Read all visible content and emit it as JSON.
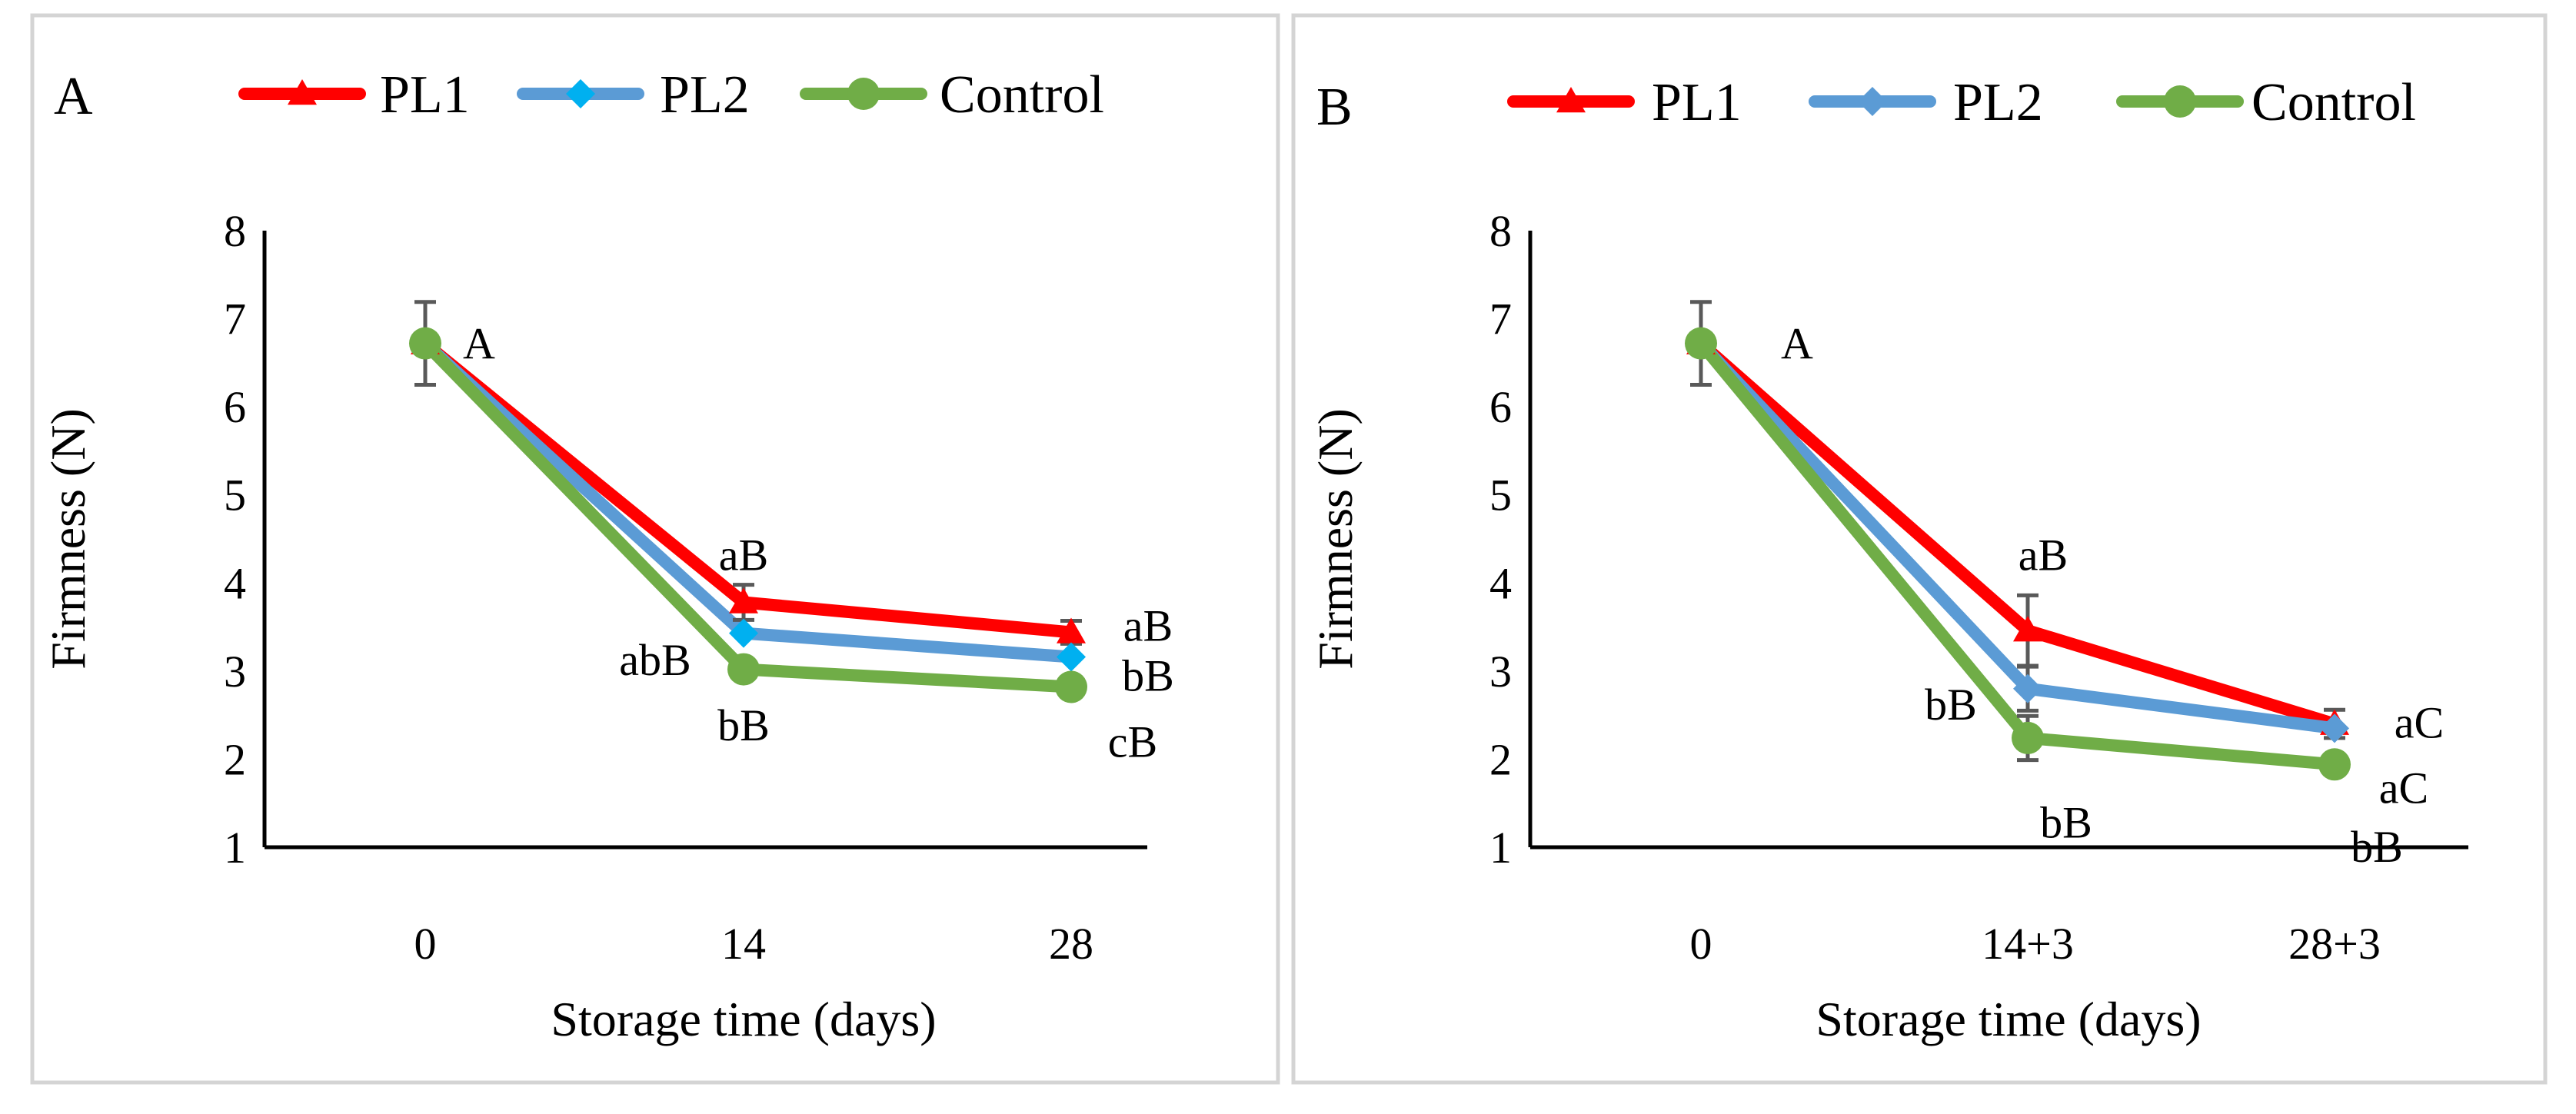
{
  "colors": {
    "PL1": "#ff0000",
    "PL2": "#5b9bd5",
    "PL2_marker_A": "#00b0f0",
    "Control": "#70ad47",
    "errorbar": "#595959",
    "frame": "#d4d4d4"
  },
  "chart_data": [
    {
      "type": "line",
      "panel_label": "A",
      "title": "",
      "xlabel": "Storage time (days)",
      "ylabel": "Firmness (N)",
      "categories": [
        "0",
        "14",
        "28"
      ],
      "ylim": [
        1,
        8
      ],
      "yticks": [
        "1",
        "2",
        "3",
        "4",
        "5",
        "6",
        "7",
        "8"
      ],
      "grid": false,
      "legend_position": "top",
      "series": [
        {
          "name": "PL1",
          "marker": "triangle",
          "values": [
            6.72,
            3.78,
            3.44
          ],
          "errors": [
            0.47,
            0.2,
            0.13
          ]
        },
        {
          "name": "PL2",
          "marker": "diamond",
          "values": [
            6.72,
            3.43,
            3.16
          ],
          "errors": [
            0,
            0,
            0
          ]
        },
        {
          "name": "Control",
          "marker": "circle",
          "values": [
            6.72,
            3.02,
            2.82
          ],
          "errors": [
            0,
            0,
            0
          ]
        }
      ],
      "annotations": [
        {
          "text": "A",
          "category": "0",
          "y": 6.72,
          "placement": "right"
        },
        {
          "text": "aB",
          "category": "14",
          "y": 4.32,
          "placement": "above"
        },
        {
          "text": "abB",
          "category": "14",
          "y": 3.35,
          "placement": "left"
        },
        {
          "text": "bB",
          "category": "14",
          "y": 2.52,
          "placement": "below"
        },
        {
          "text": "aB",
          "category": "28",
          "y": 3.52,
          "placement": "right"
        },
        {
          "text": "bB",
          "category": "28",
          "y": 2.95,
          "placement": "right"
        },
        {
          "text": "cB",
          "category": "28",
          "y": 2.2,
          "placement": "right"
        }
      ]
    },
    {
      "type": "line",
      "panel_label": "B",
      "title": "",
      "xlabel": "Storage time (days)",
      "ylabel": "Firmness (N)",
      "categories": [
        "0",
        "14+3",
        "28+3"
      ],
      "ylim": [
        1,
        8
      ],
      "yticks": [
        "1",
        "2",
        "3",
        "4",
        "5",
        "6",
        "7",
        "8"
      ],
      "grid": false,
      "legend_position": "top",
      "series": [
        {
          "name": "PL1",
          "marker": "triangle",
          "values": [
            6.72,
            3.46,
            2.4
          ],
          "errors": [
            0.47,
            0.4,
            0.16
          ]
        },
        {
          "name": "PL2",
          "marker": "diamond",
          "values": [
            6.72,
            2.8,
            2.35
          ],
          "errors": [
            0,
            0.25,
            0
          ]
        },
        {
          "name": "Control",
          "marker": "circle",
          "values": [
            6.72,
            2.24,
            1.94
          ],
          "errors": [
            0,
            0.25,
            0
          ]
        }
      ],
      "annotations": [
        {
          "text": "A",
          "category": "0",
          "y": 6.72,
          "placement": "right"
        },
        {
          "text": "aB",
          "category": "14+3",
          "y": 4.32,
          "placement": "above"
        },
        {
          "text": "bB",
          "category": "14+3",
          "y": 2.8,
          "placement": "left"
        },
        {
          "text": "bB",
          "category": "14+3",
          "y": 1.5,
          "placement": "below"
        },
        {
          "text": "aC",
          "category": "28+3",
          "y": 2.42,
          "placement": "right"
        },
        {
          "text": "aC",
          "category": "28+3",
          "y": 1.94,
          "placement": "right"
        },
        {
          "text": "bB",
          "category": "28+3",
          "y": 1.4,
          "placement": "right"
        }
      ]
    }
  ]
}
